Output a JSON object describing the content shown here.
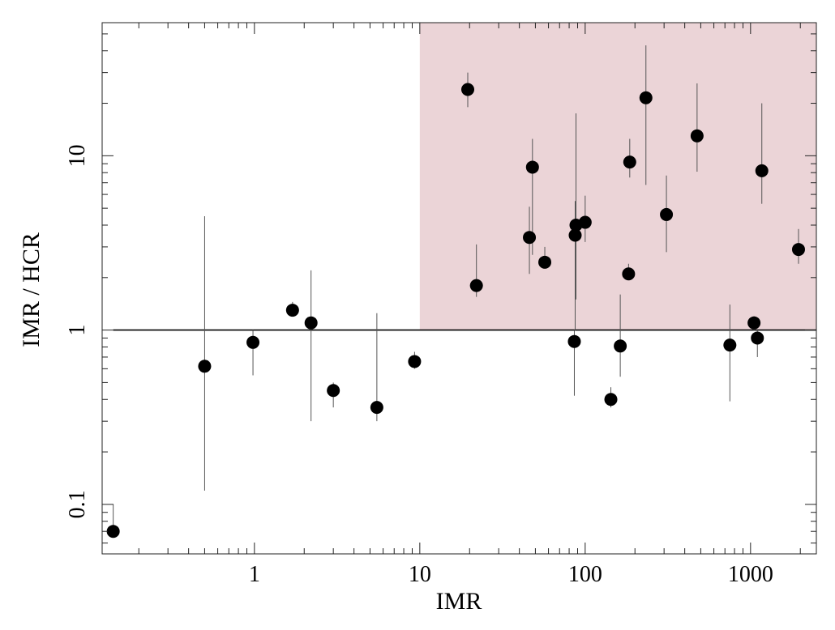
{
  "chart_data": {
    "type": "scatter",
    "title": "",
    "xlabel": "IMR",
    "ylabel": "IMR / HCR",
    "xscale": "log",
    "yscale": "log",
    "xlim": [
      0.12,
      2500
    ],
    "ylim": [
      0.052,
      58
    ],
    "grid": false,
    "legend": "none",
    "x_ticks": [
      {
        "value": 1,
        "label": "1"
      },
      {
        "value": 10,
        "label": "10"
      },
      {
        "value": 100,
        "label": "100"
      },
      {
        "value": 1000,
        "label": "1000"
      }
    ],
    "y_ticks": [
      {
        "value": 0.1,
        "label": "0.1"
      },
      {
        "value": 1,
        "label": "1"
      },
      {
        "value": 10,
        "label": "10"
      }
    ],
    "reference_line": {
      "y": 1,
      "x_from": 0.14,
      "x_to": 2500
    },
    "highlight_region": {
      "x_from": 10,
      "x_to": 2500,
      "y_from": 1,
      "y_to": 58
    },
    "colors": {
      "highlight": "#ebd4d7",
      "marker": "#000000",
      "errorbar": "#555555",
      "axis": "#222222"
    },
    "points": [
      {
        "x": 0.14,
        "y": 0.07,
        "ylo": 0.065,
        "yhi": 0.1
      },
      {
        "x": 0.5,
        "y": 0.62,
        "ylo": 0.12,
        "yhi": 4.5
      },
      {
        "x": 0.98,
        "y": 0.85,
        "ylo": 0.55,
        "yhi": 1.0
      },
      {
        "x": 1.7,
        "y": 1.3,
        "ylo": 1.25,
        "yhi": 1.45
      },
      {
        "x": 2.2,
        "y": 1.1,
        "ylo": 0.3,
        "yhi": 2.2
      },
      {
        "x": 3.0,
        "y": 0.45,
        "ylo": 0.36,
        "yhi": 0.5
      },
      {
        "x": 5.5,
        "y": 0.36,
        "ylo": 0.3,
        "yhi": 1.25
      },
      {
        "x": 9.3,
        "y": 0.66,
        "ylo": 0.6,
        "yhi": 0.75
      },
      {
        "x": 19.5,
        "y": 24,
        "ylo": 19,
        "yhi": 30
      },
      {
        "x": 22,
        "y": 1.8,
        "ylo": 1.55,
        "yhi": 3.1
      },
      {
        "x": 46,
        "y": 3.4,
        "ylo": 2.1,
        "yhi": 5.1
      },
      {
        "x": 48,
        "y": 8.6,
        "ylo": 2.7,
        "yhi": 12.5
      },
      {
        "x": 57,
        "y": 2.45,
        "ylo": 2.3,
        "yhi": 3.0
      },
      {
        "x": 86,
        "y": 0.86,
        "ylo": 0.42,
        "yhi": 1.0
      },
      {
        "x": 87,
        "y": 3.5,
        "ylo": 1.0,
        "yhi": 5.5
      },
      {
        "x": 88,
        "y": 4.0,
        "ylo": 1.5,
        "yhi": 17.5
      },
      {
        "x": 100,
        "y": 4.15,
        "ylo": 3.2,
        "yhi": 5.9
      },
      {
        "x": 143,
        "y": 0.4,
        "ylo": 0.36,
        "yhi": 0.47
      },
      {
        "x": 163,
        "y": 0.81,
        "ylo": 0.54,
        "yhi": 1.6
      },
      {
        "x": 183,
        "y": 2.1,
        "ylo": 1.95,
        "yhi": 2.4
      },
      {
        "x": 186,
        "y": 9.2,
        "ylo": 7.5,
        "yhi": 12.5
      },
      {
        "x": 233,
        "y": 21.5,
        "ylo": 6.8,
        "yhi": 43
      },
      {
        "x": 310,
        "y": 4.6,
        "ylo": 2.8,
        "yhi": 7.7
      },
      {
        "x": 475,
        "y": 13,
        "ylo": 8.1,
        "yhi": 26
      },
      {
        "x": 750,
        "y": 0.82,
        "ylo": 0.39,
        "yhi": 1.4
      },
      {
        "x": 1050,
        "y": 1.1,
        "ylo": 1.0,
        "yhi": 1.2
      },
      {
        "x": 1100,
        "y": 0.9,
        "ylo": 0.7,
        "yhi": 1.0
      },
      {
        "x": 1170,
        "y": 8.2,
        "ylo": 5.3,
        "yhi": 20
      },
      {
        "x": 1950,
        "y": 2.9,
        "ylo": 2.4,
        "yhi": 3.8
      }
    ]
  }
}
